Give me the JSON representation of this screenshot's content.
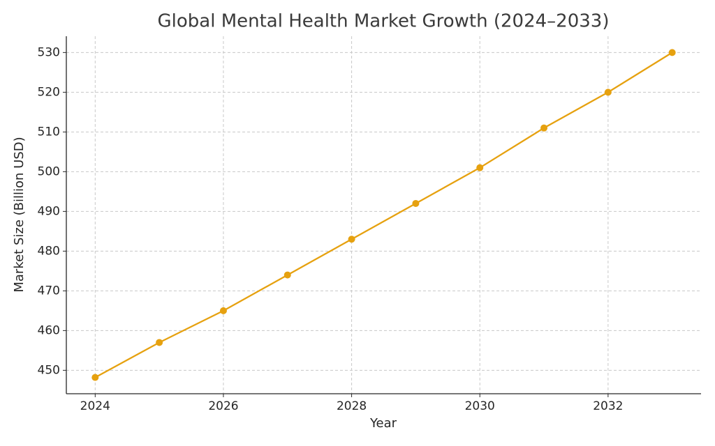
{
  "chart_data": {
    "type": "line",
    "title": "Global Mental Health Market Growth (2024–2033)",
    "x_label": "Year",
    "y_label": "Market Size (Billion USD)",
    "x": [
      2024,
      2025,
      2026,
      2027,
      2028,
      2029,
      2030,
      2031,
      2032,
      2033
    ],
    "series": [
      {
        "name": "Market Size",
        "color": "#e6a10f",
        "values": [
          448.2,
          457,
          465,
          474,
          483,
          492,
          501,
          511,
          520,
          530
        ]
      }
    ],
    "xlim": [
      2023.55,
      2033.45
    ],
    "xticks": [
      2024,
      2026,
      2028,
      2030,
      2032
    ],
    "ylim": [
      444.1,
      534.1
    ],
    "yticks": [
      450,
      460,
      470,
      480,
      490,
      500,
      510,
      520,
      530
    ],
    "grid": true
  }
}
